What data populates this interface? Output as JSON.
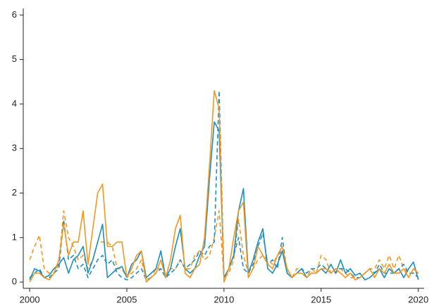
{
  "chart_data": {
    "type": "line",
    "x": [
      2000,
      2000.25,
      2000.5,
      2000.75,
      2001,
      2001.25,
      2001.5,
      2001.75,
      2002,
      2002.25,
      2002.5,
      2002.75,
      2003,
      2003.25,
      2003.5,
      2003.75,
      2004,
      2004.25,
      2004.5,
      2004.75,
      2005,
      2005.25,
      2005.5,
      2005.75,
      2006,
      2006.25,
      2006.5,
      2006.75,
      2007,
      2007.25,
      2007.5,
      2007.75,
      2008,
      2008.25,
      2008.5,
      2008.75,
      2009,
      2009.25,
      2009.5,
      2009.75,
      2010,
      2010.25,
      2010.5,
      2010.75,
      2011,
      2011.25,
      2011.5,
      2011.75,
      2012,
      2012.25,
      2012.5,
      2012.75,
      2013,
      2013.25,
      2013.5,
      2013.75,
      2014,
      2014.25,
      2014.5,
      2014.75,
      2015,
      2015.25,
      2015.5,
      2015.75,
      2016,
      2016.25,
      2016.5,
      2016.75,
      2017,
      2017.25,
      2017.5,
      2017.75,
      2018,
      2018.25,
      2018.5,
      2018.75,
      2019,
      2019.25,
      2019.5,
      2019.75,
      2020
    ],
    "series": [
      {
        "color": "#f5961e",
        "dash": true,
        "values": [
          0.5,
          0.8,
          1.05,
          0.3,
          0.2,
          0.2,
          0.4,
          1.6,
          1.0,
          0.8,
          0.5,
          0.6,
          0.3,
          0.5,
          0.9,
          0.9,
          0.9,
          0.8,
          0.3,
          0.3,
          0.1,
          0.2,
          0.3,
          0.5,
          0.05,
          0.1,
          0.3,
          0.3,
          0.1,
          0.3,
          0.3,
          0.5,
          0.3,
          0.3,
          0.6,
          0.7,
          0.5,
          0.6,
          1.0,
          1.6,
          0.1,
          0.2,
          0.5,
          1.4,
          0.6,
          0.2,
          0.3,
          0.5,
          0.6,
          0.5,
          0.4,
          0.6,
          0.7,
          0.3,
          0.1,
          0.3,
          0.3,
          0.1,
          0.3,
          0.2,
          0.6,
          0.5,
          0.2,
          0.2,
          0.3,
          0.2,
          0.1,
          0.1,
          0.1,
          0.2,
          0.3,
          0.3,
          0.5,
          0.3,
          0.6,
          0.3,
          0.6,
          0.3,
          0.2,
          0.2,
          0.2
        ]
      },
      {
        "color": "#1a8fc0",
        "dash": true,
        "values": [
          0.1,
          0.2,
          0.3,
          0.1,
          0.1,
          0.2,
          0.3,
          1.4,
          0.5,
          0.6,
          0.3,
          0.4,
          0.1,
          0.3,
          0.5,
          0.6,
          0.4,
          0.5,
          0.2,
          0.1,
          0.05,
          0.1,
          0.2,
          0.3,
          0.05,
          0.1,
          0.2,
          0.3,
          0.1,
          0.2,
          0.3,
          0.5,
          0.3,
          0.4,
          0.5,
          0.7,
          0.6,
          0.8,
          0.9,
          4.3,
          0.1,
          0.3,
          0.6,
          1.0,
          0.3,
          0.2,
          0.4,
          0.8,
          1.1,
          0.4,
          0.5,
          0.3,
          1.0,
          0.2,
          0.1,
          0.2,
          0.3,
          0.2,
          0.3,
          0.3,
          0.4,
          0.3,
          0.2,
          0.3,
          0.3,
          0.3,
          0.2,
          0.1,
          0.1,
          0.2,
          0.3,
          0.2,
          0.4,
          0.2,
          0.2,
          0.2,
          0.3,
          0.4,
          0.2,
          0.2,
          0.1
        ]
      },
      {
        "color": "#1a8fc0",
        "dash": false,
        "values": [
          0.05,
          0.3,
          0.25,
          0.1,
          0.15,
          0.3,
          0.4,
          0.55,
          0.2,
          0.5,
          0.6,
          0.8,
          0.2,
          0.5,
          0.9,
          1.3,
          0.1,
          0.2,
          0.3,
          0.35,
          0.1,
          0.4,
          0.5,
          0.7,
          0.1,
          0.2,
          0.3,
          0.7,
          0.1,
          0.3,
          0.8,
          1.2,
          0.3,
          0.2,
          0.3,
          0.6,
          0.8,
          2.3,
          3.6,
          3.4,
          0.1,
          0.3,
          0.6,
          1.6,
          2.1,
          0.2,
          0.5,
          0.9,
          1.2,
          0.3,
          0.2,
          0.4,
          0.7,
          0.2,
          0.1,
          0.2,
          0.3,
          0.1,
          0.2,
          0.2,
          0.3,
          0.2,
          0.4,
          0.2,
          0.5,
          0.2,
          0.3,
          0.15,
          0.2,
          0.05,
          0.1,
          0.2,
          0.3,
          0.1,
          0.3,
          0.2,
          0.3,
          0.1,
          0.3,
          0.45,
          0.05
        ]
      },
      {
        "color": "#f5961e",
        "dash": false,
        "values": [
          0.0,
          0.2,
          0.2,
          0.1,
          0.05,
          0.2,
          0.5,
          1.3,
          0.6,
          0.9,
          0.9,
          1.6,
          0.4,
          1.2,
          2.0,
          2.2,
          0.8,
          0.8,
          0.9,
          0.9,
          0.1,
          0.3,
          0.6,
          0.7,
          0.0,
          0.1,
          0.2,
          0.5,
          0.1,
          0.5,
          1.2,
          1.5,
          0.2,
          0.1,
          0.3,
          0.4,
          1.0,
          2.6,
          4.3,
          3.9,
          0.0,
          0.3,
          1.0,
          1.6,
          1.8,
          0.1,
          0.3,
          0.8,
          0.6,
          0.4,
          0.3,
          0.6,
          0.8,
          0.3,
          0.1,
          0.2,
          0.2,
          0.1,
          0.2,
          0.2,
          0.3,
          0.3,
          0.2,
          0.3,
          0.2,
          0.1,
          0.2,
          0.05,
          0.1,
          0.2,
          0.3,
          0.1,
          0.3,
          0.2,
          0.4,
          0.2,
          0.2,
          0.3,
          0.1,
          0.3,
          0.2
        ]
      }
    ],
    "xlim": [
      1999.67,
      2020.3
    ],
    "ylim": [
      -0.14,
      6.1
    ],
    "xticks": [
      2000,
      2005,
      2010,
      2015,
      2020
    ],
    "yticks": [
      0,
      1,
      2,
      3,
      4,
      5,
      6
    ]
  }
}
